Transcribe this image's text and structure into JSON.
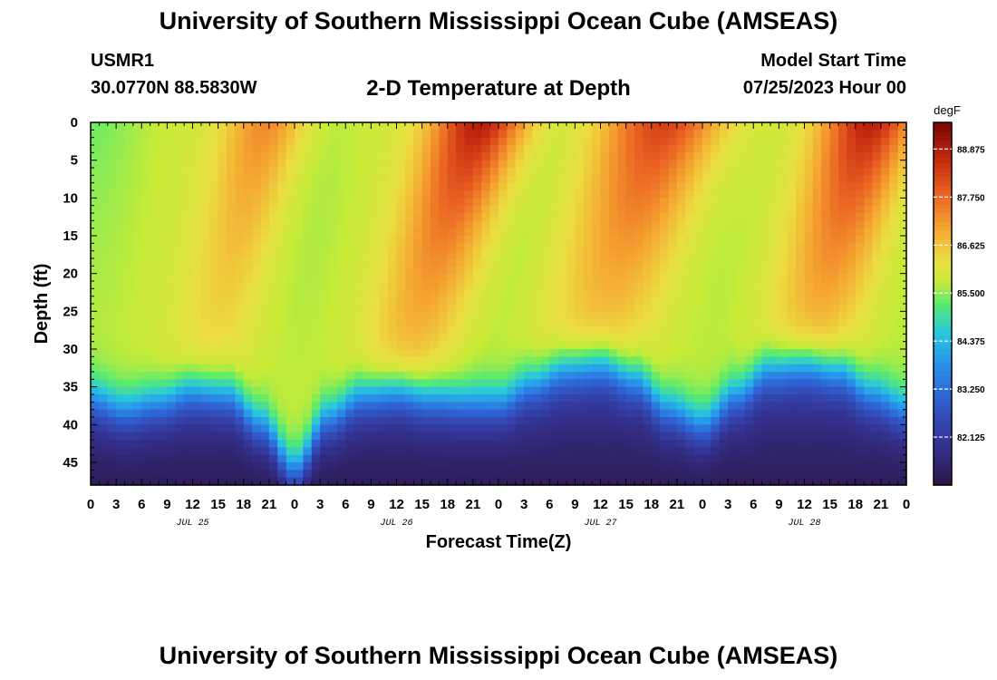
{
  "header": {
    "title": "University of Southern Mississippi Ocean Cube (AMSEAS)",
    "station": "USMR1",
    "coords": "30.0770N  88.5830W",
    "subtitle": "2-D Temperature at Depth",
    "model_start_label": "Model Start Time",
    "model_start_value": "07/25/2023 Hour 00"
  },
  "footer": {
    "title": "University of Southern Mississippi Ocean Cube (AMSEAS)"
  },
  "chart_data": {
    "type": "heatmap",
    "title": "2-D Temperature at Depth",
    "xlabel": "Forecast Time(Z)",
    "ylabel": "Depth (ft)",
    "x_range_hours": [
      0,
      96
    ],
    "y_range_ft": [
      0,
      48
    ],
    "x_tick_labels": [
      "0",
      "3",
      "6",
      "9",
      "12",
      "15",
      "18",
      "21",
      "0",
      "3",
      "6",
      "9",
      "12",
      "15",
      "18",
      "21",
      "0",
      "3",
      "6",
      "9",
      "12",
      "15",
      "18",
      "21",
      "0",
      "3",
      "6",
      "9",
      "12",
      "15",
      "18",
      "21",
      "0"
    ],
    "y_ticks": [
      0,
      5,
      10,
      15,
      20,
      25,
      30,
      35,
      40,
      45
    ],
    "date_labels": [
      {
        "label": "JUL 25",
        "hour": 12
      },
      {
        "label": "JUL 26",
        "hour": 36
      },
      {
        "label": "JUL 27",
        "hour": 60
      },
      {
        "label": "JUL 28",
        "hour": 84
      }
    ],
    "colorbar": {
      "unit": "degF",
      "min": 81.0,
      "max": 89.5,
      "ticks": [
        "88.875",
        "87.750",
        "86.625",
        "85.500",
        "84.375",
        "83.250",
        "82.125"
      ]
    },
    "thermocline_depth_ft": [
      [
        0,
        33.5
      ],
      [
        4,
        35
      ],
      [
        8,
        34
      ],
      [
        12,
        32.5
      ],
      [
        16,
        33
      ],
      [
        20,
        37
      ],
      [
        24,
        43
      ],
      [
        28,
        36
      ],
      [
        32,
        33
      ],
      [
        36,
        32.5
      ],
      [
        40,
        33.5
      ],
      [
        44,
        34
      ],
      [
        48,
        34
      ],
      [
        52,
        31.5
      ],
      [
        56,
        29.5
      ],
      [
        60,
        29
      ],
      [
        64,
        31
      ],
      [
        68,
        35
      ],
      [
        72,
        37
      ],
      [
        76,
        33
      ],
      [
        80,
        29.5
      ],
      [
        84,
        29
      ],
      [
        88,
        30
      ],
      [
        92,
        33
      ],
      [
        96,
        35
      ]
    ],
    "surface_warm_maxima": [
      {
        "hour": 21,
        "slope_hours_per_ft": -0.22,
        "width_hours": 3.5,
        "peak_degF": 87.4
      },
      {
        "hour": 46,
        "slope_hours_per_ft": -0.28,
        "width_hours": 4,
        "peak_degF": 89.0
      },
      {
        "hour": 68,
        "slope_hours_per_ft": -0.3,
        "width_hours": 5,
        "peak_degF": 88.3
      },
      {
        "hour": 92,
        "slope_hours_per_ft": -0.25,
        "width_hours": 4,
        "peak_degF": 88.8
      }
    ],
    "mixed_layer_base_degF": 85.5,
    "bottom_degF": 81.0
  }
}
